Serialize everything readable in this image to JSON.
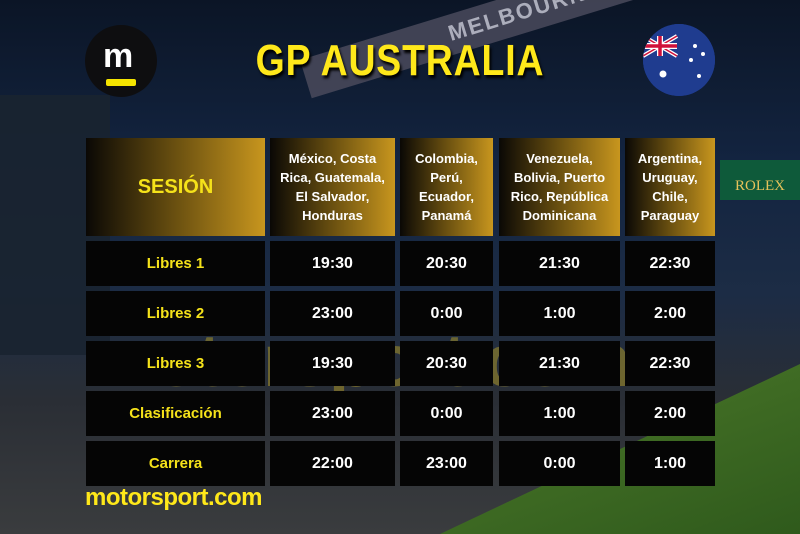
{
  "header": {
    "title": "GP AUSTRALIA",
    "logo_icon": "motorsport-m-logo",
    "flag_icon": "australia-flag"
  },
  "background": {
    "signs": [
      "MELBOURNE",
      "Australia",
      "ROLEX"
    ]
  },
  "table": {
    "columns": [
      "SESIÓN",
      "México, Costa Rica, Guatemala, El Salvador, Honduras",
      "Colombia, Perú, Ecuador, Panamá",
      "Venezuela, Bolivia, Puerto Rico, República Dominicana",
      "Argentina, Uruguay, Chile, Paraguay"
    ],
    "rows": [
      [
        "Libres 1",
        "19:30",
        "20:30",
        "21:30",
        "22:30"
      ],
      [
        "Libres 2",
        "23:00",
        "0:00",
        "1:00",
        "2:00"
      ],
      [
        "Libres 3",
        "19:30",
        "20:30",
        "21:30",
        "22:30"
      ],
      [
        "Clasificación",
        "23:00",
        "0:00",
        "1:00",
        "2:00"
      ],
      [
        "Carrera",
        "22:00",
        "23:00",
        "0:00",
        "1:00"
      ]
    ]
  },
  "watermark": "motorsport.com",
  "footer": {
    "brand": "motorsport.com"
  },
  "colors": {
    "accent": "#ffe81a",
    "header_gold": "#c8961e",
    "cell_bg": "#050505"
  }
}
